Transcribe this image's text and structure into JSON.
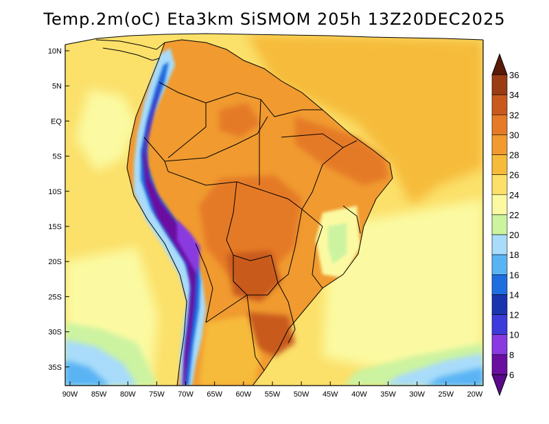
{
  "map": {
    "title": "Temp.2m(oC) Eta3km SiSMOM 205h 13Z20DEC2025",
    "variable": "Temp.2m",
    "units": "oC",
    "model": "Eta3km",
    "system": "SiSMOM",
    "forecast_hour": "205h",
    "valid_time": "13Z20DEC2025",
    "lat_ticks": [
      "10N",
      "5N",
      "EQ",
      "5S",
      "10S",
      "15S",
      "20S",
      "25S",
      "30S",
      "35S"
    ],
    "lon_ticks": [
      "90W",
      "85W",
      "80W",
      "75W",
      "70W",
      "65W",
      "60W",
      "55W",
      "50W",
      "45W",
      "40W",
      "35W",
      "30W",
      "25W",
      "20W"
    ],
    "colorbar": {
      "labels": [
        "36",
        "34",
        "32",
        "30",
        "28",
        "26",
        "24",
        "22",
        "20",
        "18",
        "16",
        "14",
        "12",
        "10",
        "8",
        "6"
      ],
      "colors": [
        "#6e2a0e",
        "#9a3c14",
        "#c85a1e",
        "#e57a28",
        "#f09a30",
        "#f6bb3a",
        "#fbe06a",
        "#fbfaa2",
        "#ccf3a0",
        "#a8dcfa",
        "#5ab4f4",
        "#1e6ee0",
        "#1a34b0",
        "#3c3cdc",
        "#8a3ae0",
        "#6a0ea0"
      ],
      "over_color": "#5a1a08",
      "under_color": "#5a0a8a"
    }
  }
}
